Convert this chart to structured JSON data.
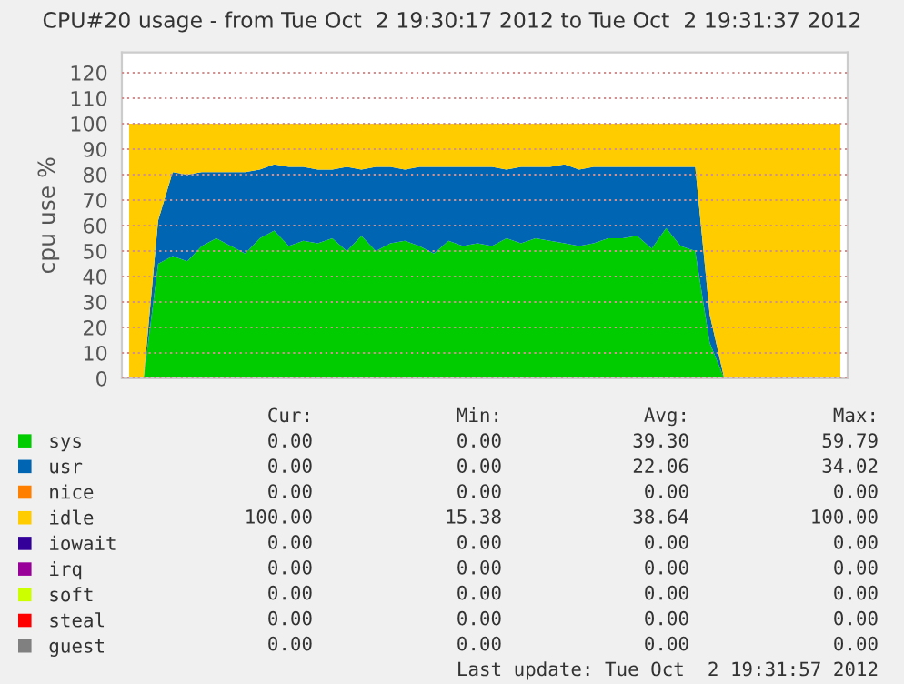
{
  "chart_data": {
    "type": "area",
    "stacked": true,
    "title": "CPU#20 usage - from Tue Oct  2 19:30:17 2012 to Tue Oct  2 19:31:37 2012",
    "ylabel": "cpu use %",
    "categories": [
      null,
      null,
      null,
      null,
      null,
      null,
      null,
      null,
      null,
      null,
      null,
      null,
      null,
      null,
      null,
      null,
      null,
      null,
      null,
      null,
      null,
      null,
      null,
      null,
      null,
      null,
      null,
      null,
      null,
      null,
      null,
      null,
      null,
      null,
      null,
      null,
      null,
      null,
      null,
      null,
      null,
      null,
      null,
      null,
      null,
      null,
      null,
      null,
      null,
      null
    ],
    "series": [
      {
        "name": "sys",
        "color": "#00cc00",
        "values": [
          0,
          0,
          45,
          48,
          46,
          52,
          55,
          52,
          49,
          55,
          58,
          52,
          54,
          53,
          55,
          50,
          56,
          50,
          53,
          54,
          52,
          49,
          54,
          52,
          53,
          52,
          55,
          53,
          55,
          54,
          53,
          52,
          53,
          55,
          55,
          56,
          51,
          59,
          52,
          50,
          14,
          0,
          0,
          0,
          0,
          0,
          0,
          0,
          0,
          0
        ]
      },
      {
        "name": "usr",
        "color": "#0066b3",
        "values": [
          0,
          0,
          17,
          33,
          34,
          29,
          26,
          29,
          32,
          27,
          26,
          31,
          29,
          29,
          27,
          33,
          26,
          33,
          30,
          28,
          31,
          34,
          29,
          31,
          30,
          31,
          27,
          30,
          28,
          29,
          31,
          30,
          30,
          28,
          28,
          27,
          32,
          24,
          31,
          33,
          11,
          0,
          0,
          0,
          0,
          0,
          0,
          0,
          0,
          0
        ]
      },
      {
        "name": "nice",
        "color": "#ff8000",
        "values": [
          null,
          null,
          null,
          null,
          null,
          null,
          null,
          null,
          null,
          null,
          null,
          null,
          null,
          null,
          null,
          null,
          null,
          null,
          null,
          null,
          null,
          null,
          null,
          null,
          null,
          null,
          null,
          null,
          null,
          null,
          null,
          null,
          null,
          null,
          null,
          null,
          null,
          null,
          null,
          null,
          null,
          null,
          null,
          null,
          null,
          null,
          null,
          null,
          null,
          null
        ]
      },
      {
        "name": "idle",
        "color": "#ffcc00",
        "values": [
          100,
          100,
          38,
          19,
          20,
          19,
          19,
          19,
          19,
          18,
          16,
          17,
          17,
          18,
          18,
          17,
          18,
          17,
          17,
          18,
          17,
          17,
          17,
          17,
          17,
          17,
          18,
          17,
          17,
          17,
          16,
          18,
          17,
          17,
          17,
          17,
          17,
          17,
          17,
          17,
          75,
          100,
          100,
          100,
          100,
          100,
          100,
          100,
          100,
          100
        ]
      },
      {
        "name": "iowait",
        "color": "#330099",
        "values": [
          null,
          null,
          null,
          null,
          null,
          null,
          null,
          null,
          null,
          null,
          null,
          null,
          null,
          null,
          null,
          null,
          null,
          null,
          null,
          null,
          null,
          null,
          null,
          null,
          null,
          null,
          null,
          null,
          null,
          null,
          null,
          null,
          null,
          null,
          null,
          null,
          null,
          null,
          null,
          null,
          null,
          null,
          null,
          null,
          null,
          null,
          null,
          null,
          null,
          null
        ]
      },
      {
        "name": "irq",
        "color": "#990099",
        "values": [
          null,
          null,
          null,
          null,
          null,
          null,
          null,
          null,
          null,
          null,
          null,
          null,
          null,
          null,
          null,
          null,
          null,
          null,
          null,
          null,
          null,
          null,
          null,
          null,
          null,
          null,
          null,
          null,
          null,
          null,
          null,
          null,
          null,
          null,
          null,
          null,
          null,
          null,
          null,
          null,
          null,
          null,
          null,
          null,
          null,
          null,
          null,
          null,
          null,
          null
        ]
      },
      {
        "name": "soft",
        "color": "#ccff00",
        "values": [
          null,
          null,
          null,
          null,
          null,
          null,
          null,
          null,
          null,
          null,
          null,
          null,
          null,
          null,
          null,
          null,
          null,
          null,
          null,
          null,
          null,
          null,
          null,
          null,
          null,
          null,
          null,
          null,
          null,
          null,
          null,
          null,
          null,
          null,
          null,
          null,
          null,
          null,
          null,
          null,
          null,
          null,
          null,
          null,
          null,
          null,
          null,
          null,
          null,
          null
        ]
      },
      {
        "name": "steal",
        "color": "#ff0000",
        "values": [
          null,
          null,
          null,
          null,
          null,
          null,
          null,
          null,
          null,
          null,
          null,
          null,
          null,
          null,
          null,
          null,
          null,
          null,
          null,
          null,
          null,
          null,
          null,
          null,
          null,
          null,
          null,
          null,
          null,
          null,
          null,
          null,
          null,
          null,
          null,
          null,
          null,
          null,
          null,
          null,
          null,
          null,
          null,
          null,
          null,
          null,
          null,
          null,
          null,
          null
        ]
      },
      {
        "name": "guest",
        "color": "#808080",
        "values": [
          null,
          null,
          null,
          null,
          null,
          null,
          null,
          null,
          null,
          null,
          null,
          null,
          null,
          null,
          null,
          null,
          null,
          null,
          null,
          null,
          null,
          null,
          null,
          null,
          null,
          null,
          null,
          null,
          null,
          null,
          null,
          null,
          null,
          null,
          null,
          null,
          null,
          null,
          null,
          null,
          null,
          null,
          null,
          null,
          null,
          null,
          null,
          null,
          null,
          null
        ]
      }
    ],
    "ylim": [
      0,
      128
    ],
    "yticks": [
      0,
      10,
      20,
      30,
      40,
      50,
      60,
      70,
      80,
      90,
      100,
      110,
      120
    ],
    "grid": "y",
    "legend": "bottom left",
    "tick_labels": "y",
    "annotations": [
      "Cur:",
      "Min:",
      "Avg:",
      "Max:",
      "0.00",
      "0.00",
      "39.30",
      "59.79",
      "0.00",
      "0.00",
      "22.06",
      "34.02",
      "0.00",
      "0.00",
      "0.00",
      "0.00",
      "100.00",
      "15.38",
      "38.64",
      "100.00",
      "0.00",
      "0.00",
      "0.00",
      "0.00",
      "0.00",
      "0.00",
      "0.00",
      "0.00",
      "0.00",
      "0.00",
      "0.00",
      "0.00",
      "0.00",
      "0.00",
      "0.00",
      "0.00",
      "0.00",
      "0.00",
      "0.00",
      "0.00",
      "Last update: Tue Oct  2 19:31:57 2012"
    ]
  }
}
